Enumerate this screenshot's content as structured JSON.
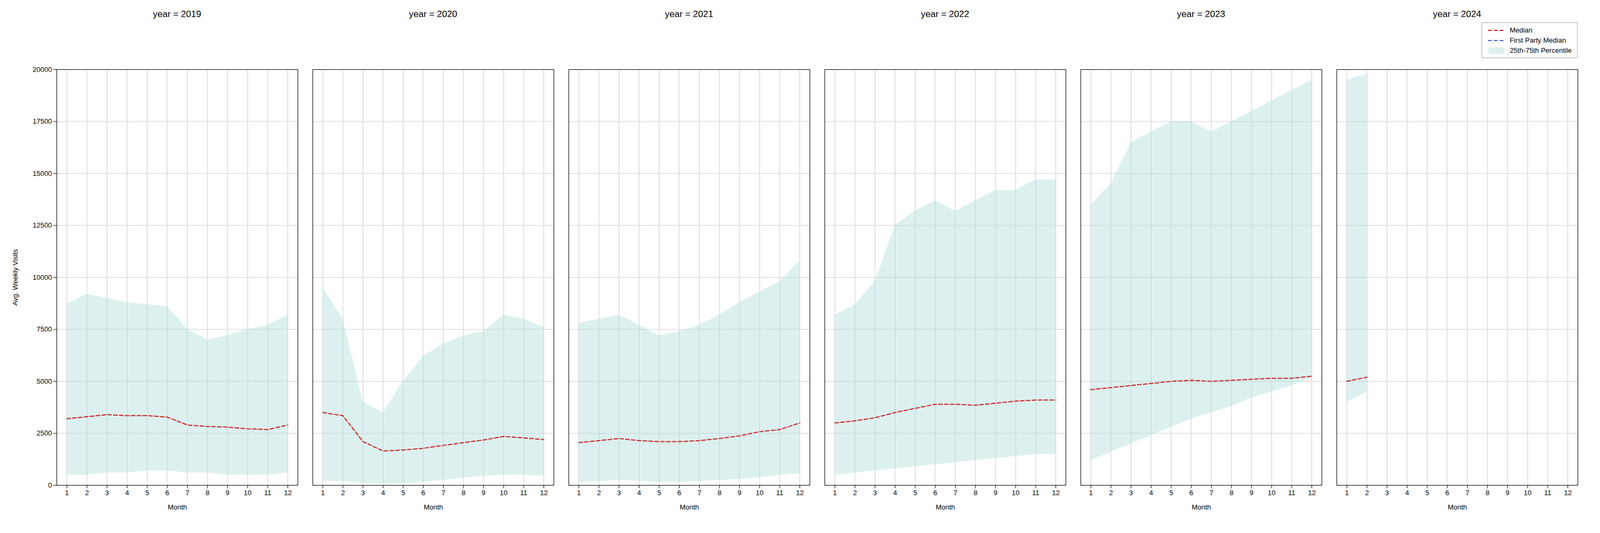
{
  "chart_data": [
    {
      "type": "line",
      "title": "year = 2019",
      "xlabel": "Month",
      "ylabel": "Avg. Weekly Visits",
      "x": [
        1,
        2,
        3,
        4,
        5,
        6,
        7,
        8,
        9,
        10,
        11,
        12
      ],
      "series": [
        {
          "name": "Median",
          "type": "line",
          "color": "#cc2222",
          "line_style": "dashed",
          "values": [
            3200,
            3300,
            3400,
            3350,
            3350,
            3280,
            2900,
            2830,
            2800,
            2720,
            2680,
            2900
          ]
        },
        {
          "name": "25th-75th Percentile",
          "type": "area",
          "color": "#b2dfdb",
          "lower": [
            500,
            500,
            600,
            600,
            700,
            700,
            600,
            600,
            500,
            500,
            500,
            600
          ],
          "upper": [
            8700,
            9200,
            9000,
            8800,
            8700,
            8600,
            7500,
            7000,
            7200,
            7500,
            7700,
            8200
          ]
        }
      ],
      "xlim": [
        0.5,
        12.5
      ],
      "xticks": [
        1,
        2,
        3,
        4,
        5,
        6,
        7,
        8,
        9,
        10,
        11,
        12
      ],
      "ylim": [
        0,
        20000
      ],
      "yticks": [
        0,
        2500,
        5000,
        7500,
        10000,
        12500,
        15000,
        17500,
        20000
      ],
      "grid": true
    },
    {
      "type": "line",
      "title": "year = 2020",
      "xlabel": "Month",
      "x": [
        1,
        2,
        3,
        4,
        5,
        6,
        7,
        8,
        9,
        10,
        11,
        12
      ],
      "series": [
        {
          "name": "Median",
          "type": "line",
          "color": "#cc2222",
          "line_style": "dashed",
          "values": [
            3500,
            3350,
            2100,
            1650,
            1700,
            1780,
            1920,
            2050,
            2180,
            2350,
            2280,
            2200
          ]
        },
        {
          "name": "25th-75th Percentile",
          "type": "area",
          "color": "#b2dfdb",
          "lower": [
            200,
            200,
            100,
            50,
            80,
            150,
            250,
            350,
            450,
            500,
            500,
            450
          ],
          "upper": [
            9500,
            8000,
            4000,
            3500,
            5000,
            6200,
            6800,
            7200,
            7400,
            8200,
            8000,
            7600
          ]
        }
      ],
      "xlim": [
        0.5,
        12.5
      ],
      "xticks": [
        1,
        2,
        3,
        4,
        5,
        6,
        7,
        8,
        9,
        10,
        11,
        12
      ],
      "ylim": [
        0,
        20000
      ],
      "yticks": [
        0,
        2500,
        5000,
        7500,
        10000,
        12500,
        15000,
        17500,
        20000
      ],
      "grid": true,
      "tick_labels": "x"
    },
    {
      "type": "line",
      "title": "year = 2021",
      "xlabel": "Month",
      "x": [
        1,
        2,
        3,
        4,
        5,
        6,
        7,
        8,
        9,
        10,
        11,
        12
      ],
      "series": [
        {
          "name": "Median",
          "type": "line",
          "color": "#cc2222",
          "line_style": "dashed",
          "values": [
            2050,
            2150,
            2250,
            2150,
            2100,
            2100,
            2150,
            2250,
            2380,
            2580,
            2680,
            3000
          ]
        },
        {
          "name": "25th-75th Percentile",
          "type": "area",
          "color": "#b2dfdb",
          "lower": [
            150,
            180,
            250,
            200,
            150,
            150,
            180,
            250,
            280,
            380,
            480,
            580
          ],
          "upper": [
            7800,
            8000,
            8200,
            7700,
            7200,
            7400,
            7700,
            8200,
            8800,
            9300,
            9800,
            10800
          ]
        }
      ],
      "xlim": [
        0.5,
        12.5
      ],
      "xticks": [
        1,
        2,
        3,
        4,
        5,
        6,
        7,
        8,
        9,
        10,
        11,
        12
      ],
      "ylim": [
        0,
        20000
      ],
      "yticks": [
        0,
        2500,
        5000,
        7500,
        10000,
        12500,
        15000,
        17500,
        20000
      ],
      "grid": true,
      "tick_labels": "x"
    },
    {
      "type": "line",
      "title": "year = 2022",
      "xlabel": "Month",
      "x": [
        1,
        2,
        3,
        4,
        5,
        6,
        7,
        8,
        9,
        10,
        11,
        12
      ],
      "series": [
        {
          "name": "Median",
          "type": "line",
          "color": "#cc2222",
          "line_style": "dashed",
          "values": [
            3000,
            3100,
            3250,
            3500,
            3700,
            3900,
            3900,
            3850,
            3950,
            4050,
            4100,
            4100
          ]
        },
        {
          "name": "25th-75th Percentile",
          "type": "area",
          "color": "#b2dfdb",
          "lower": [
            500,
            600,
            700,
            800,
            900,
            1000,
            1100,
            1200,
            1300,
            1400,
            1500,
            1500
          ],
          "upper": [
            8200,
            8700,
            9800,
            12500,
            13200,
            13700,
            13200,
            13700,
            14200,
            14200,
            14700,
            14700
          ]
        }
      ],
      "xlim": [
        0.5,
        12.5
      ],
      "xticks": [
        1,
        2,
        3,
        4,
        5,
        6,
        7,
        8,
        9,
        10,
        11,
        12
      ],
      "ylim": [
        0,
        20000
      ],
      "yticks": [
        0,
        2500,
        5000,
        7500,
        10000,
        12500,
        15000,
        17500,
        20000
      ],
      "grid": true,
      "tick_labels": "x"
    },
    {
      "type": "line",
      "title": "year = 2023",
      "xlabel": "Month",
      "x": [
        1,
        2,
        3,
        4,
        5,
        6,
        7,
        8,
        9,
        10,
        11,
        12
      ],
      "series": [
        {
          "name": "Median",
          "type": "line",
          "color": "#cc2222",
          "line_style": "dashed",
          "values": [
            4600,
            4700,
            4800,
            4900,
            5000,
            5050,
            5000,
            5050,
            5100,
            5150,
            5150,
            5250
          ]
        },
        {
          "name": "25th-75th Percentile",
          "type": "area",
          "color": "#b2dfdb",
          "lower": [
            1200,
            1600,
            2000,
            2400,
            2800,
            3200,
            3500,
            3800,
            4200,
            4500,
            4800,
            5200
          ],
          "upper": [
            13500,
            14500,
            16500,
            17000,
            17500,
            17500,
            17000,
            17500,
            18000,
            18500,
            19000,
            19500
          ]
        }
      ],
      "xlim": [
        0.5,
        12.5
      ],
      "xticks": [
        1,
        2,
        3,
        4,
        5,
        6,
        7,
        8,
        9,
        10,
        11,
        12
      ],
      "ylim": [
        0,
        20000
      ],
      "yticks": [
        0,
        2500,
        5000,
        7500,
        10000,
        12500,
        15000,
        17500,
        20000
      ],
      "grid": true,
      "tick_labels": "x"
    },
    {
      "type": "line",
      "title": "year = 2024",
      "xlabel": "Month",
      "x": [
        1,
        2
      ],
      "series": [
        {
          "name": "Median",
          "type": "line",
          "color": "#cc2222",
          "line_style": "dashed",
          "values": [
            5000,
            5200
          ]
        },
        {
          "name": "First Party Median",
          "type": "line",
          "color": "#4466cc",
          "line_style": "dashed",
          "values": [
            null,
            null
          ]
        },
        {
          "name": "25th-75th Percentile",
          "type": "area",
          "color": "#b2dfdb",
          "lower": [
            4000,
            4500
          ],
          "upper": [
            19500,
            19800
          ]
        }
      ],
      "xlim": [
        0.5,
        12.5
      ],
      "xticks": [
        1,
        2,
        3,
        4,
        5,
        6,
        7,
        8,
        9,
        10,
        11,
        12
      ],
      "ylim": [
        0,
        20000
      ],
      "yticks": [
        0,
        2500,
        5000,
        7500,
        10000,
        12500,
        15000,
        17500,
        20000
      ],
      "grid": true,
      "tick_labels": "x",
      "legend": "upper right"
    }
  ]
}
